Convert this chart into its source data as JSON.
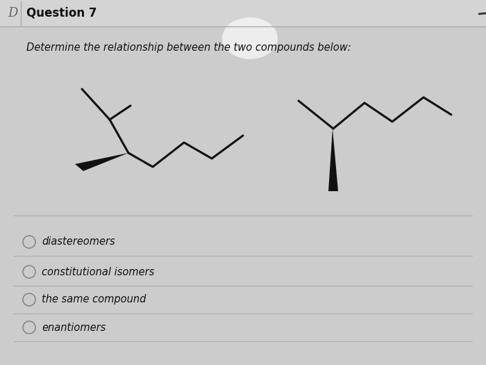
{
  "title": "Question 7",
  "subtitle": "Determine the relationship between the two compounds below:",
  "bg_color": "#cccccc",
  "header_bg": "#d8d8d8",
  "line_color": "#111111",
  "text_color": "#111111",
  "answer_choices": [
    "diastereomers",
    "constitutional isomers",
    "the same compound",
    "enantiomers"
  ],
  "font_size_title": 12,
  "font_size_subtitle": 10.5,
  "font_size_choices": 10.5,
  "mol1_lw": 2.2,
  "mol2_lw": 2.2
}
